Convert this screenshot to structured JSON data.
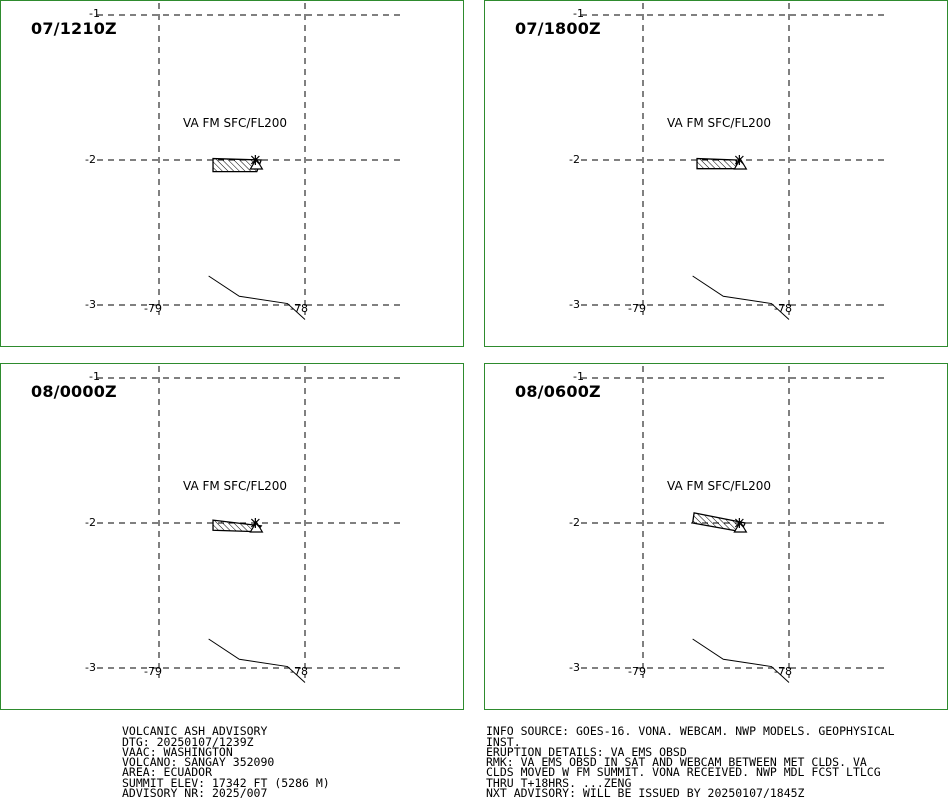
{
  "panels": [
    {
      "title": "07/1210Z",
      "va_label": "VA FM SFC/FL200",
      "ash_polygon": [
        [
          -78.63,
          -1.99
        ],
        [
          -78.3,
          -2.0
        ],
        [
          -78.33,
          -2.08
        ],
        [
          -78.63,
          -2.08
        ]
      ]
    },
    {
      "title": "07/1800Z",
      "va_label": "VA FM SFC/FL200",
      "ash_polygon": [
        [
          -78.63,
          -1.99
        ],
        [
          -78.36,
          -2.0
        ],
        [
          -78.36,
          -2.06
        ],
        [
          -78.63,
          -2.06
        ]
      ]
    },
    {
      "title": "08/0000Z",
      "va_label": "VA FM SFC/FL200",
      "ash_polygon": [
        [
          -78.63,
          -1.98
        ],
        [
          -78.3,
          -2.02
        ],
        [
          -78.33,
          -2.06
        ],
        [
          -78.63,
          -2.05
        ]
      ]
    },
    {
      "title": "08/0600Z",
      "va_label": "VA FM SFC/FL200",
      "ash_polygon": [
        [
          -78.65,
          -1.93
        ],
        [
          -78.3,
          -2.0
        ],
        [
          -78.33,
          -2.06
        ],
        [
          -78.66,
          -2.0
        ]
      ]
    }
  ],
  "grid": {
    "lat_labels": [
      "-1",
      "-2",
      "-3"
    ],
    "lon_labels": [
      "-79",
      "-78"
    ],
    "latitudes": [
      -1,
      -2,
      -3
    ],
    "longitudes": [
      -79,
      -78
    ]
  },
  "volcano": {
    "name": "SANGAY",
    "lon": -78.34,
    "lat": -2.0
  },
  "coastline": [
    [
      -78.0,
      -3.1
    ],
    [
      -78.12,
      -2.99
    ],
    [
      -78.45,
      -2.94
    ],
    [
      -78.66,
      -2.8
    ]
  ],
  "advisory_left": [
    "VOLCANIC ASH ADVISORY",
    "DTG: 20250107/1239Z",
    "VAAC: WASHINGTON",
    "VOLCANO: SANGAY 352090",
    "AREA: ECUADOR",
    "SUMMIT ELEV: 17342 FT (5286 M)",
    "ADVISORY NR: 2025/007"
  ],
  "advisory_right": [
    "INFO SOURCE: GOES-16. VONA. WEBCAM. NWP MODELS. GEOPHYSICAL",
    "INST.",
    "ERUPTION DETAILS: VA EMS OBSD",
    "RMK: VA EMS OBSD IN SAT AND WEBCAM BETWEEN MET CLDS. VA",
    "CLDS MOVED W FM SUMMIT. VONA RECEIVED. NWP MDL FCST LTLCG",
    "THRU T+18HRS. ...ZENG",
    "NXT ADVISORY: WILL BE ISSUED BY 20250107/1845Z"
  ],
  "colors": {
    "frame": "#2e8b2e",
    "ink": "#000000",
    "background": "#ffffff"
  }
}
